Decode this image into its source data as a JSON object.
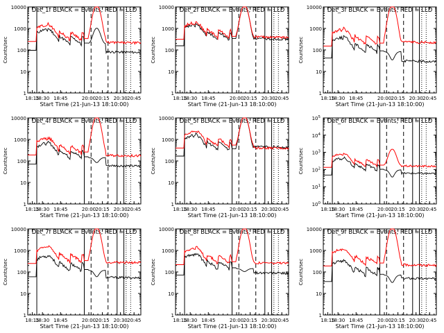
{
  "chart_data": {
    "type": "line",
    "x_ticks": [
      "18:15",
      "18:30",
      "18:45",
      "20:00",
      "20:15",
      "20:30",
      "20:45"
    ],
    "xlabel": "Start Time (21-Jun-13 18:10:00)",
    "ylabel": "Counts/sec",
    "series_colors": {
      "events": "#000000",
      "lld": "#ff0000"
    },
    "panels": [
      {
        "title": "Det_1f BLACK = Events, RED = LLD",
        "ytick_style": "plain",
        "ylim": [
          1,
          10000
        ],
        "ytick_labels": [
          "1",
          "10",
          "100",
          "1000",
          "10000"
        ],
        "black_base": 160,
        "red_base": 260,
        "black_spike": 1000,
        "red_spike": 12000,
        "red_tail": 220,
        "black_tail": 80
      },
      {
        "title": "Det_2f BLACK = Events, RED = LLD",
        "ytick_style": "plain",
        "ylim": [
          1,
          10000
        ],
        "ytick_labels": [
          "1",
          "10",
          "100",
          "1000",
          "10000"
        ],
        "black_base": 260,
        "red_base": 330,
        "black_spike": 12000,
        "red_spike": 12000,
        "red_tail": 400,
        "black_tail": 330
      },
      {
        "title": "Det_3f BLACK = Events, RED = LLD",
        "ytick_style": "plain",
        "ylim": [
          1,
          10000
        ],
        "ytick_labels": [
          "1",
          "10",
          "100",
          "1000",
          "10000"
        ],
        "black_base": 70,
        "red_base": 160,
        "black_spike": 20,
        "red_spike": 12000,
        "red_tail": 230,
        "black_tail": 30
      },
      {
        "title": "Det_4f BLACK = Events, RED = LLD",
        "ytick_style": "plain",
        "ylim": [
          1,
          10000
        ],
        "ytick_labels": [
          "1",
          "10",
          "100",
          "1000",
          "10000"
        ],
        "black_base": 120,
        "red_base": 200,
        "black_spike": 60,
        "red_spike": 12000,
        "red_tail": 180,
        "black_tail": 60
      },
      {
        "title": "Det_5f BLACK = Events, RED = LLD",
        "ytick_style": "plain",
        "ylim": [
          1,
          10000
        ],
        "ytick_labels": [
          "1",
          "10",
          "100",
          "1000",
          "10000"
        ],
        "black_base": 280,
        "red_base": 420,
        "black_spike": 12000,
        "red_spike": 12000,
        "red_tail": 400,
        "black_tail": 450
      },
      {
        "title": "Det_6f BLACK = Events, RED = LLD",
        "ytick_style": "power",
        "ylim": [
          1,
          100000
        ],
        "ytick_labels": [
          "0",
          "1",
          "2",
          "3",
          "4",
          "5"
        ],
        "black_base": 80,
        "red_base": 140,
        "black_spike": 20,
        "red_spike": 1500,
        "red_tail": 160,
        "black_tail": 60
      },
      {
        "title": "Det_7f BLACK = Events, RED = LLD",
        "ytick_style": "plain",
        "ylim": [
          1,
          10000
        ],
        "ytick_labels": [
          "1",
          "10",
          "100",
          "1000",
          "10000"
        ],
        "black_base": 100,
        "red_base": 260,
        "black_spike": 40,
        "red_spike": 12000,
        "red_tail": 280,
        "black_tail": 55
      },
      {
        "title": "Det_8f BLACK = Events, RED = LLD",
        "ytick_style": "plain",
        "ylim": [
          1,
          10000
        ],
        "ytick_labels": [
          "1",
          "10",
          "100",
          "1000",
          "10000"
        ],
        "black_base": 120,
        "red_base": 230,
        "black_spike": 80,
        "red_spike": 12000,
        "red_tail": 260,
        "black_tail": 90
      },
      {
        "title": "Det_9f BLACK = Events, RED = LLD",
        "ytick_style": "plain",
        "ylim": [
          1,
          10000
        ],
        "ytick_labels": [
          "1",
          "10",
          "100",
          "1000",
          "10000"
        ],
        "black_base": 60,
        "red_base": 200,
        "black_spike": 20,
        "red_spike": 12000,
        "red_tail": 210,
        "black_tail": 50
      }
    ]
  }
}
